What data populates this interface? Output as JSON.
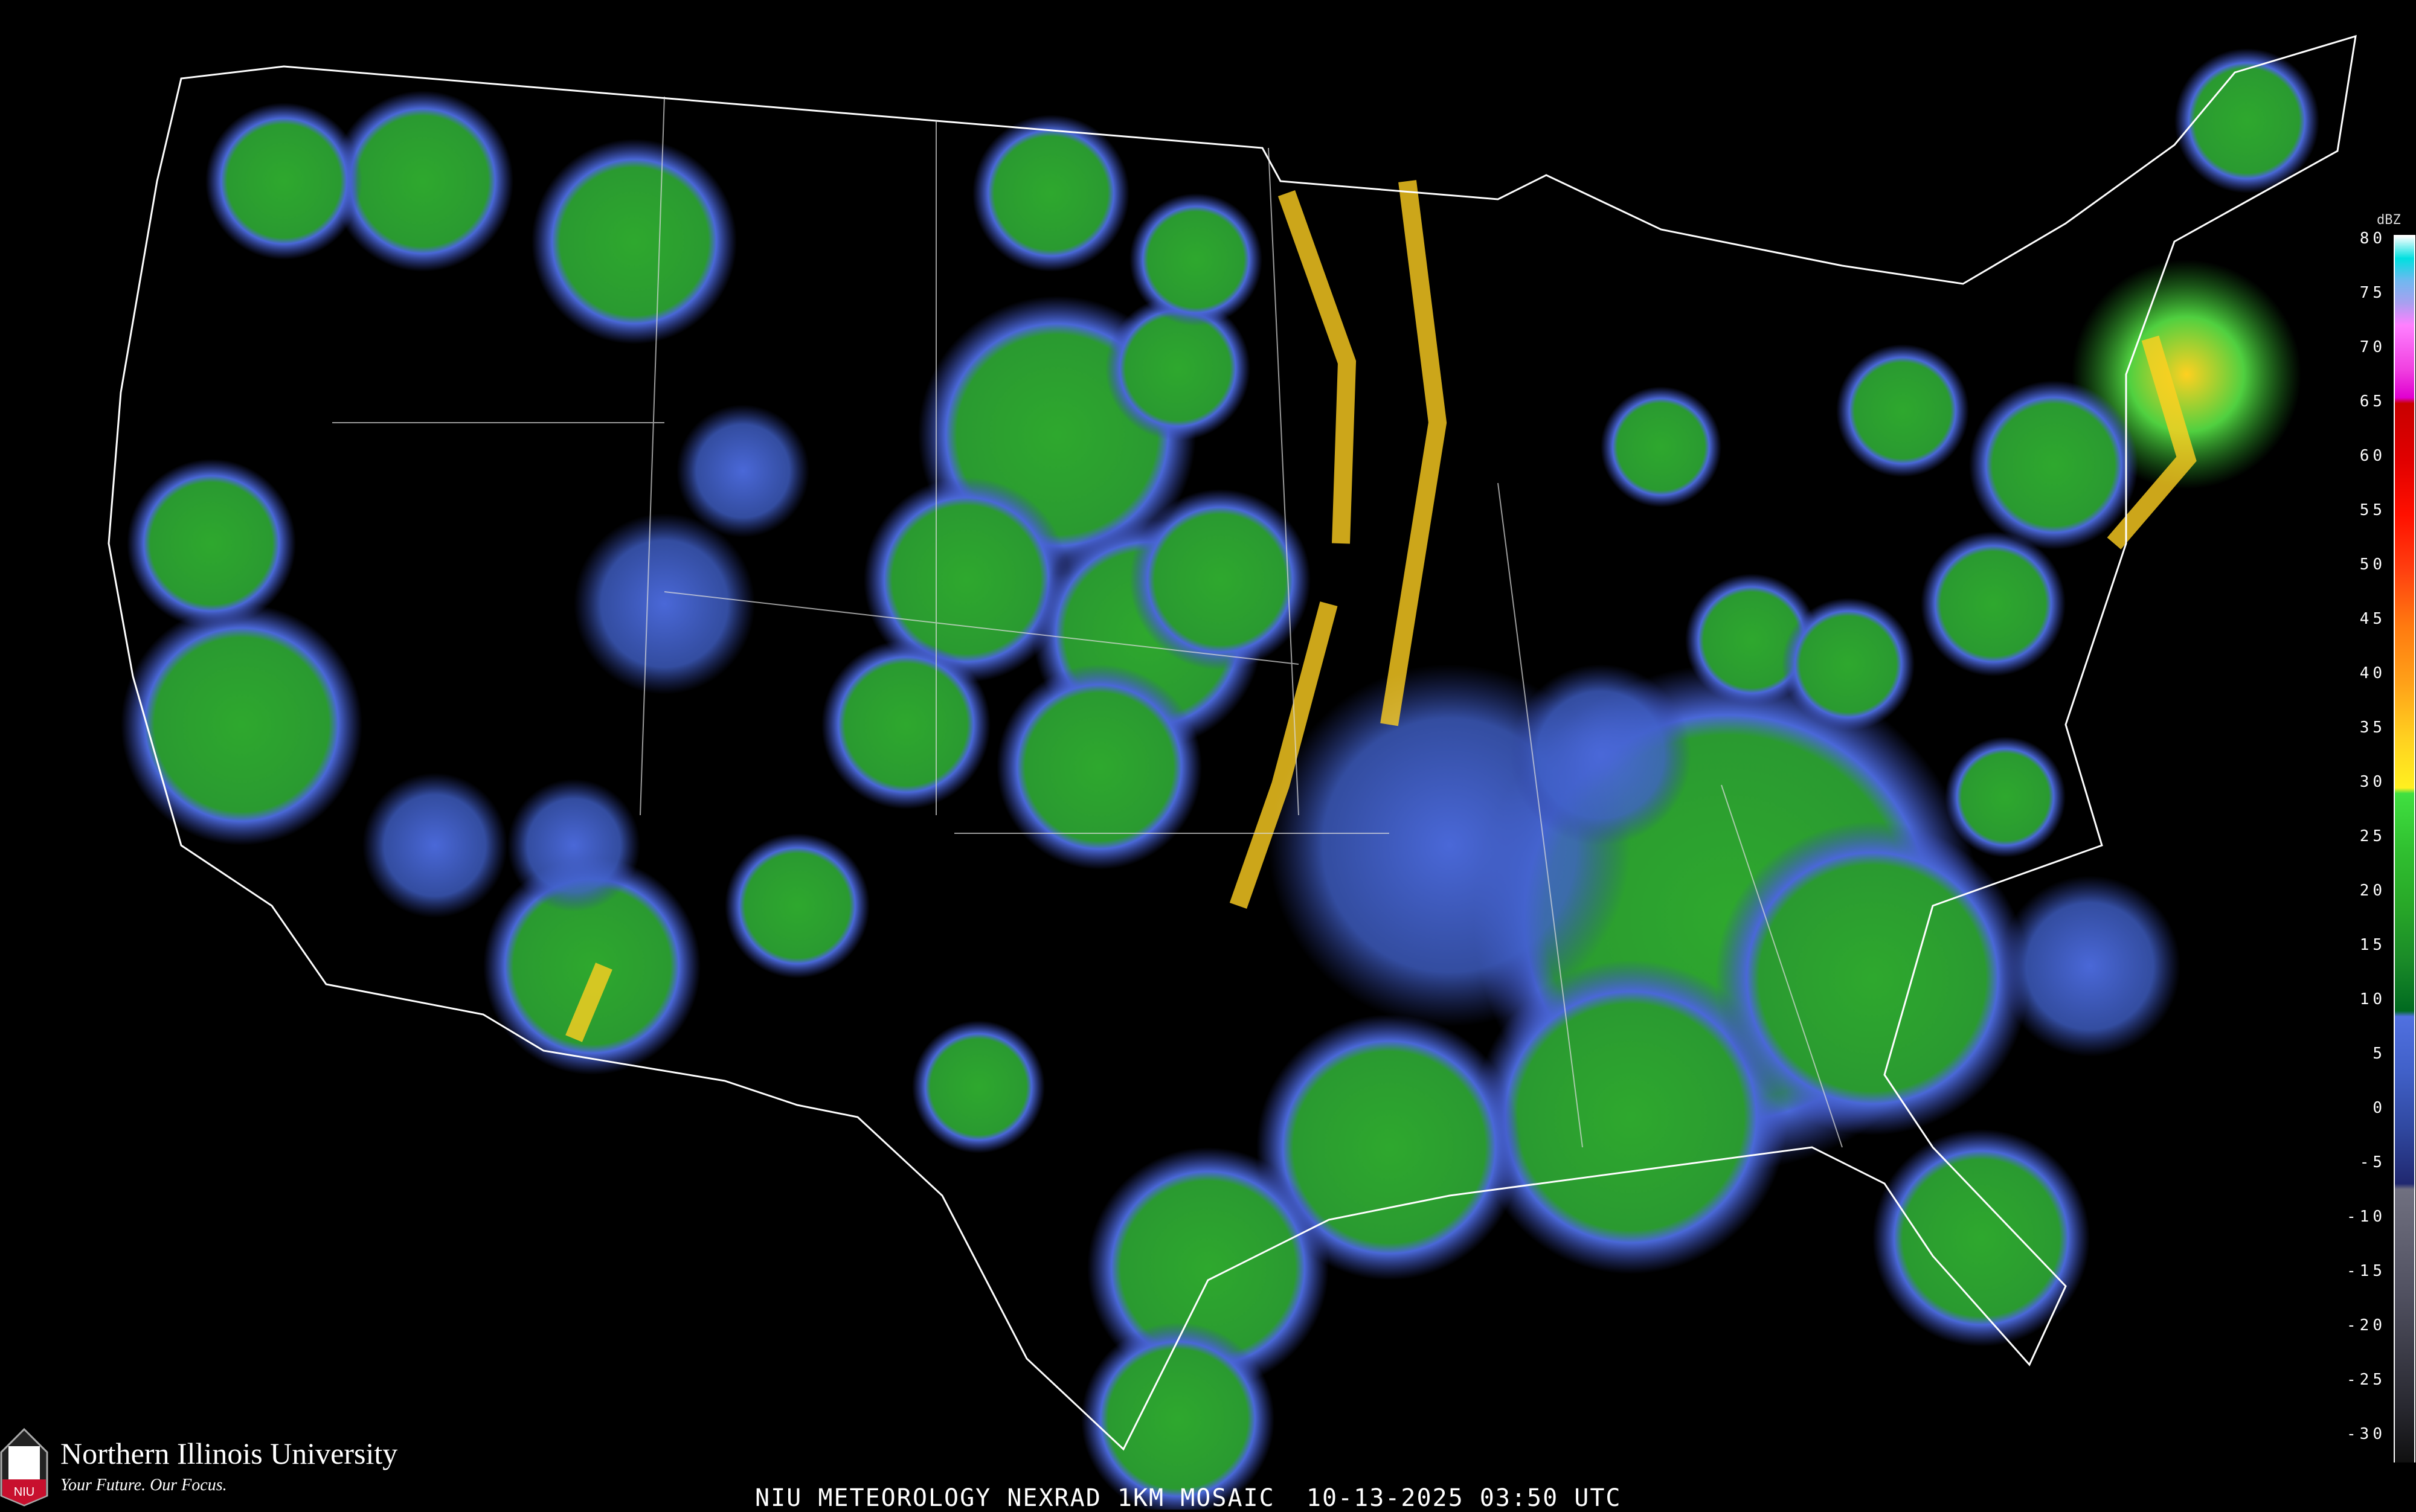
{
  "title": "NIU METEOROLOGY NEXRAD 1KM MOSAIC  10-13-2025 03:50 UTC",
  "branding": {
    "university": "Northern Illinois University",
    "tagline": "Your Future. Our Focus.",
    "logo_text": "NIU",
    "brand_color": "#c8102e"
  },
  "legend": {
    "unit": "dBZ",
    "labels": [
      "80",
      "75",
      "70",
      "65",
      "60",
      "55",
      "50",
      "45",
      "40",
      "35",
      "30",
      "25",
      "20",
      "15",
      "10",
      "5",
      "0",
      "-5",
      "-10",
      "-15",
      "-20",
      "-25",
      "-30"
    ],
    "color_stops": [
      {
        "dbz": 80,
        "color": "#ffffff"
      },
      {
        "dbz": 78,
        "color": "#00e0e0"
      },
      {
        "dbz": 76,
        "color": "#70b8f0"
      },
      {
        "dbz": 74,
        "color": "#a8a0f0"
      },
      {
        "dbz": 72,
        "color": "#ff80ff"
      },
      {
        "dbz": 68,
        "color": "#f040e0"
      },
      {
        "dbz": 65.5,
        "color": "#e000d0"
      },
      {
        "dbz": 65,
        "color": "#c80000"
      },
      {
        "dbz": 60,
        "color": "#e00000"
      },
      {
        "dbz": 55,
        "color": "#ff1000"
      },
      {
        "dbz": 50,
        "color": "#ff4010"
      },
      {
        "dbz": 45,
        "color": "#ff7a10"
      },
      {
        "dbz": 40,
        "color": "#ffa018"
      },
      {
        "dbz": 35,
        "color": "#ffd020"
      },
      {
        "dbz": 30.5,
        "color": "#fff020"
      },
      {
        "dbz": 30,
        "color": "#40e040"
      },
      {
        "dbz": 25,
        "color": "#30c030"
      },
      {
        "dbz": 20,
        "color": "#28a828"
      },
      {
        "dbz": 15,
        "color": "#1a8a28"
      },
      {
        "dbz": 10.5,
        "color": "#006a20"
      },
      {
        "dbz": 10,
        "color": "#5070e0"
      },
      {
        "dbz": 5,
        "color": "#4060c8"
      },
      {
        "dbz": 0,
        "color": "#3048a0"
      },
      {
        "dbz": -5,
        "color": "#202870"
      },
      {
        "dbz": -5.5,
        "color": "#707080"
      },
      {
        "dbz": -15,
        "color": "#505060"
      },
      {
        "dbz": -25,
        "color": "#282830"
      },
      {
        "dbz": -30,
        "color": "#101010"
      }
    ]
  },
  "colors": {
    "background": "#000000",
    "borders": "#ffffff",
    "roads": "#8b3a2a",
    "counties": "#555555"
  }
}
